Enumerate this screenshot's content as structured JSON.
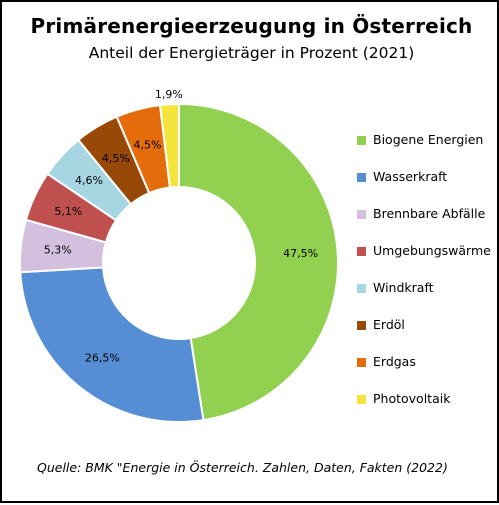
{
  "title": "Primärenergieerzeugung in Österreich",
  "subtitle": "Anteil der Energieträger in Prozent (2021)",
  "source": "Quelle: BMK \"Energie in Österreich. Zahlen, Daten, Fakten (2022)",
  "chart_data": {
    "type": "pie",
    "title": "Primärenergieerzeugung in Österreich",
    "subtitle": "Anteil der Energieträger in Prozent (2021)",
    "legend_position": "right",
    "slices": [
      {
        "label": "Biogene Energien",
        "value": 47.5,
        "display": "47,5%",
        "color": "#92d050"
      },
      {
        "label": "Wasserkraft",
        "value": 26.5,
        "display": "26,5%",
        "color": "#558ed5"
      },
      {
        "label": "Brennbare Abfälle",
        "value": 5.3,
        "display": "5,3%",
        "color": "#d3c0de"
      },
      {
        "label": "Umgebungswärme",
        "value": 5.1,
        "display": "5,1%",
        "color": "#c0504d"
      },
      {
        "label": "Windkraft",
        "value": 4.6,
        "display": "4,6%",
        "color": "#a5d6e2"
      },
      {
        "label": "Erdöl",
        "value": 4.5,
        "display": "4,5%",
        "color": "#984807"
      },
      {
        "label": "Erdgas",
        "value": 4.5,
        "display": "4,5%",
        "color": "#e46c0a"
      },
      {
        "label": "Photovoltaik",
        "value": 1.9,
        "display": "1,9%",
        "color": "#f5e43b"
      }
    ]
  }
}
